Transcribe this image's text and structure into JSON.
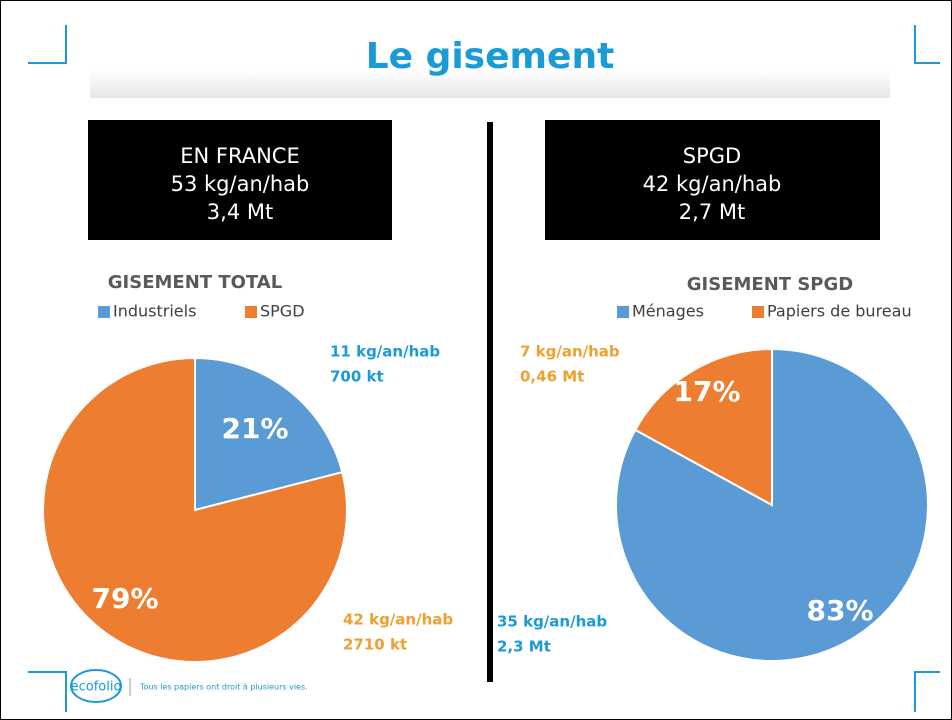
{
  "title": "Le gisement",
  "boxes": [
    {
      "lines": [
        "EN FRANCE",
        "53 kg/an/hab",
        "3,4 Mt"
      ]
    },
    {
      "lines": [
        "SPGD",
        "42 kg/an/hab",
        "2,7 Mt"
      ]
    }
  ],
  "chart_data": [
    {
      "type": "pie",
      "title": "GISEMENT TOTAL",
      "categories": [
        "Industriels",
        "SPGD"
      ],
      "values": [
        21,
        79
      ],
      "value_labels": [
        "21%",
        "79%"
      ],
      "colors": [
        "#5b9bd5",
        "#ed7d31"
      ],
      "annotations": [
        [
          "11 kg/an/hab",
          "700 kt"
        ],
        [
          "42 kg/an/hab",
          "2710 kt"
        ]
      ]
    },
    {
      "type": "pie",
      "title": "GISEMENT SPGD",
      "categories": [
        "Ménages",
        "Papiers de bureau"
      ],
      "values": [
        83,
        17
      ],
      "value_labels": [
        "83%",
        "17%"
      ],
      "colors": [
        "#5b9bd5",
        "#ed7d31"
      ],
      "annotations": [
        [
          "35 kg/an/hab",
          "2,3 Mt"
        ],
        [
          "7 kg/an/hab",
          "0,46 Mt"
        ]
      ]
    }
  ],
  "footer": {
    "logo": "ecofolio",
    "tagline": "Tous les papiers ont droit à plusieurs vies."
  }
}
